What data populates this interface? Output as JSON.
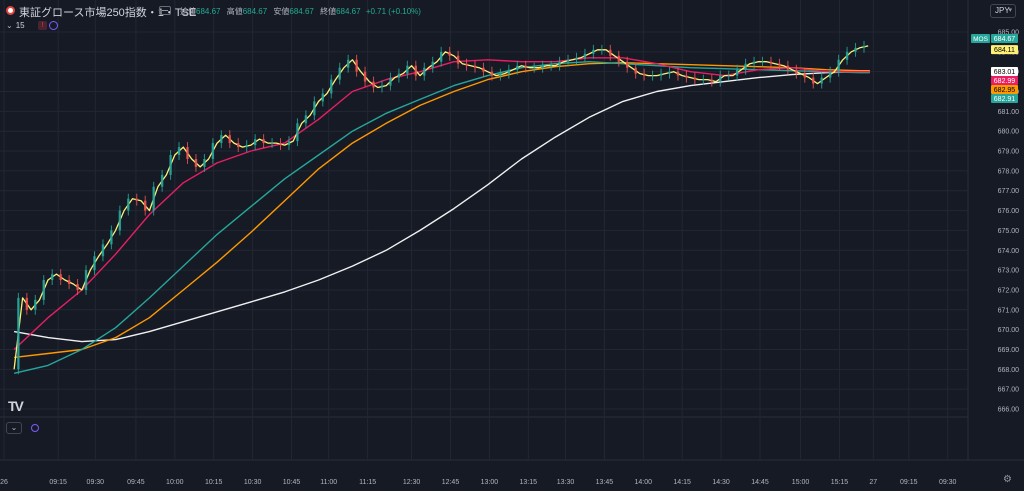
{
  "header": {
    "title": "東証グロース市場250指数・1・TSE",
    "ohlc": [
      {
        "label": "始値",
        "value": "684.67"
      },
      {
        "label": "高値",
        "value": "684.67"
      },
      {
        "label": "安値",
        "value": "684.67"
      },
      {
        "label": "終値",
        "value": "684.67"
      }
    ],
    "change": "+0.71 (+0.10%)",
    "interval_label": "15",
    "currency": "JPY"
  },
  "chart_data": {
    "type": "line",
    "ylim": [
      665.8,
      685.2
    ],
    "y_ticks": [
      "685.00",
      "684.00",
      "683.00",
      "682.00",
      "681.00",
      "680.00",
      "679.00",
      "678.00",
      "677.00",
      "676.00",
      "675.00",
      "674.00",
      "673.00",
      "672.00",
      "671.00",
      "670.00",
      "669.00",
      "668.00",
      "667.00",
      "666.00"
    ],
    "x_ticks": [
      {
        "label": "26",
        "t": -0.6
      },
      {
        "label": "09:15",
        "t": 2.6
      },
      {
        "label": "09:30",
        "t": 4.8
      },
      {
        "label": "09:45",
        "t": 7.2
      },
      {
        "label": "10:00",
        "t": 9.5
      },
      {
        "label": "10:15",
        "t": 11.8
      },
      {
        "label": "10:30",
        "t": 14.1
      },
      {
        "label": "10:45",
        "t": 16.4
      },
      {
        "label": "11:00",
        "t": 18.6
      },
      {
        "label": "11:15",
        "t": 20.9
      },
      {
        "label": "12:30",
        "t": 23.5
      },
      {
        "label": "12:45",
        "t": 25.8
      },
      {
        "label": "13:00",
        "t": 28.1
      },
      {
        "label": "13:15",
        "t": 30.4
      },
      {
        "label": "13:30",
        "t": 32.6
      },
      {
        "label": "13:45",
        "t": 34.9
      },
      {
        "label": "14:00",
        "t": 37.2
      },
      {
        "label": "14:15",
        "t": 39.5
      },
      {
        "label": "14:30",
        "t": 41.8
      },
      {
        "label": "14:45",
        "t": 44.1
      },
      {
        "label": "15:00",
        "t": 46.5
      },
      {
        "label": "15:15",
        "t": 48.8
      },
      {
        "label": "27",
        "t": 50.8
      },
      {
        "label": "09:15",
        "t": 52.9
      },
      {
        "label": "09:30",
        "t": 55.2
      }
    ],
    "series": [
      {
        "key": "price",
        "color": "#fff176",
        "points": [
          [
            0,
            668.0
          ],
          [
            0.5,
            671.6
          ],
          [
            1,
            671.0
          ],
          [
            1.5,
            671.5
          ],
          [
            2,
            672.5
          ],
          [
            2.5,
            672.8
          ],
          [
            3,
            672.5
          ],
          [
            3.5,
            672.3
          ],
          [
            4,
            672.0
          ],
          [
            4.5,
            673.0
          ],
          [
            5,
            673.7
          ],
          [
            5.5,
            674.3
          ],
          [
            6,
            675.0
          ],
          [
            6.5,
            676.0
          ],
          [
            7,
            676.6
          ],
          [
            7.5,
            676.5
          ],
          [
            8,
            676.0
          ],
          [
            8.5,
            677.2
          ],
          [
            9,
            677.8
          ],
          [
            9.5,
            678.8
          ],
          [
            10,
            679.2
          ],
          [
            10.5,
            678.6
          ],
          [
            11,
            678.2
          ],
          [
            11.5,
            678.6
          ],
          [
            12,
            679.4
          ],
          [
            12.5,
            679.8
          ],
          [
            13,
            679.4
          ],
          [
            13.5,
            679.2
          ],
          [
            14,
            679.3
          ],
          [
            14.5,
            679.6
          ],
          [
            15,
            679.4
          ],
          [
            15.5,
            679.4
          ],
          [
            16,
            679.3
          ],
          [
            16.5,
            679.5
          ],
          [
            17,
            680.4
          ],
          [
            17.5,
            680.8
          ],
          [
            18,
            681.5
          ],
          [
            18.5,
            681.9
          ],
          [
            19,
            682.6
          ],
          [
            19.5,
            683.2
          ],
          [
            20,
            683.6
          ],
          [
            20.5,
            683.0
          ],
          [
            21,
            682.5
          ],
          [
            21.5,
            682.2
          ],
          [
            22,
            682.3
          ],
          [
            22.5,
            682.7
          ],
          [
            23,
            682.9
          ],
          [
            23.5,
            683.3
          ],
          [
            24,
            682.8
          ],
          [
            24.5,
            683.2
          ],
          [
            25,
            683.5
          ],
          [
            25.5,
            684.0
          ],
          [
            26,
            683.8
          ],
          [
            26.5,
            683.4
          ],
          [
            27,
            683.3
          ],
          [
            27.5,
            683.2
          ],
          [
            28,
            683.0
          ],
          [
            28.5,
            682.8
          ],
          [
            29,
            682.9
          ],
          [
            29.5,
            683.1
          ],
          [
            30,
            683.3
          ],
          [
            30.5,
            683.2
          ],
          [
            31,
            683.2
          ],
          [
            31.5,
            683.3
          ],
          [
            32,
            683.3
          ],
          [
            32.5,
            683.5
          ],
          [
            33,
            683.6
          ],
          [
            33.5,
            683.7
          ],
          [
            34,
            683.9
          ],
          [
            34.5,
            684.1
          ],
          [
            35,
            684.1
          ],
          [
            35.5,
            683.8
          ],
          [
            36,
            683.5
          ],
          [
            36.5,
            683.2
          ],
          [
            37,
            682.9
          ],
          [
            37.5,
            682.8
          ],
          [
            38,
            682.8
          ],
          [
            38.5,
            682.9
          ],
          [
            39,
            683.0
          ],
          [
            39.5,
            682.8
          ],
          [
            40,
            682.7
          ],
          [
            40.5,
            682.6
          ],
          [
            41,
            682.6
          ],
          [
            41.5,
            682.5
          ],
          [
            42,
            682.8
          ],
          [
            42.5,
            682.8
          ],
          [
            43,
            683.1
          ],
          [
            43.5,
            683.4
          ],
          [
            44,
            683.5
          ],
          [
            44.5,
            683.5
          ],
          [
            45,
            683.4
          ],
          [
            45.5,
            683.3
          ],
          [
            46,
            683.1
          ],
          [
            46.5,
            682.9
          ],
          [
            47,
            682.7
          ],
          [
            47.5,
            682.4
          ],
          [
            48,
            682.7
          ],
          [
            48.5,
            683.0
          ],
          [
            49,
            683.6
          ],
          [
            49.5,
            684.0
          ],
          [
            50,
            684.2
          ],
          [
            50.5,
            684.3
          ]
        ]
      },
      {
        "key": "ma_red",
        "color": "#e91e63",
        "points": [
          [
            0,
            669.0
          ],
          [
            2,
            670.6
          ],
          [
            4,
            672.0
          ],
          [
            6,
            673.8
          ],
          [
            8,
            675.8
          ],
          [
            10,
            677.4
          ],
          [
            12,
            678.4
          ],
          [
            14,
            679.0
          ],
          [
            16,
            679.4
          ],
          [
            18,
            680.6
          ],
          [
            20,
            682.0
          ],
          [
            22,
            682.6
          ],
          [
            24,
            683.0
          ],
          [
            26,
            683.5
          ],
          [
            28,
            683.6
          ],
          [
            30,
            683.5
          ],
          [
            32,
            683.5
          ],
          [
            34,
            683.7
          ],
          [
            36,
            683.7
          ],
          [
            38,
            683.4
          ],
          [
            40,
            683.0
          ],
          [
            42,
            682.8
          ],
          [
            44,
            683.1
          ],
          [
            46,
            683.2
          ],
          [
            48,
            683.0
          ],
          [
            50,
            683.0
          ],
          [
            50.6,
            683.0
          ]
        ]
      },
      {
        "key": "ma_teal",
        "color": "#26a69a",
        "points": [
          [
            0,
            667.8
          ],
          [
            2,
            668.2
          ],
          [
            4,
            669.0
          ],
          [
            6,
            670.1
          ],
          [
            8,
            671.6
          ],
          [
            10,
            673.2
          ],
          [
            12,
            674.8
          ],
          [
            14,
            676.2
          ],
          [
            16,
            677.6
          ],
          [
            18,
            678.8
          ],
          [
            20,
            680.0
          ],
          [
            22,
            680.9
          ],
          [
            24,
            681.6
          ],
          [
            26,
            682.3
          ],
          [
            28,
            682.8
          ],
          [
            30,
            683.2
          ],
          [
            32,
            683.4
          ],
          [
            34,
            683.5
          ],
          [
            36,
            683.4
          ],
          [
            38,
            683.3
          ],
          [
            40,
            683.2
          ],
          [
            42,
            683.15
          ],
          [
            44,
            683.1
          ],
          [
            46,
            683.05
          ],
          [
            48,
            683.0
          ],
          [
            50,
            682.95
          ],
          [
            50.6,
            682.95
          ]
        ]
      },
      {
        "key": "ma_orange",
        "color": "#ff9800",
        "points": [
          [
            0,
            668.6
          ],
          [
            2,
            668.8
          ],
          [
            4,
            669.0
          ],
          [
            6,
            669.6
          ],
          [
            8,
            670.6
          ],
          [
            10,
            672.0
          ],
          [
            12,
            673.4
          ],
          [
            14,
            674.9
          ],
          [
            16,
            676.5
          ],
          [
            18,
            678.1
          ],
          [
            20,
            679.4
          ],
          [
            22,
            680.4
          ],
          [
            24,
            681.3
          ],
          [
            26,
            682.0
          ],
          [
            28,
            682.6
          ],
          [
            30,
            683.0
          ],
          [
            32,
            683.25
          ],
          [
            34,
            683.4
          ],
          [
            36,
            683.45
          ],
          [
            38,
            683.4
          ],
          [
            40,
            683.35
          ],
          [
            42,
            683.3
          ],
          [
            44,
            683.25
          ],
          [
            46,
            683.2
          ],
          [
            48,
            683.1
          ],
          [
            50,
            683.05
          ],
          [
            50.6,
            683.05
          ]
        ]
      },
      {
        "key": "ma_white",
        "color": "#f0f0f0",
        "points": [
          [
            0,
            669.9
          ],
          [
            2,
            669.6
          ],
          [
            4,
            669.4
          ],
          [
            6,
            669.5
          ],
          [
            8,
            669.9
          ],
          [
            10,
            670.4
          ],
          [
            12,
            670.9
          ],
          [
            14,
            671.4
          ],
          [
            16,
            671.9
          ],
          [
            18,
            672.5
          ],
          [
            20,
            673.2
          ],
          [
            22,
            674.0
          ],
          [
            24,
            675.0
          ],
          [
            26,
            676.1
          ],
          [
            28,
            677.3
          ],
          [
            30,
            678.6
          ],
          [
            32,
            679.7
          ],
          [
            34,
            680.7
          ],
          [
            36,
            681.5
          ],
          [
            38,
            682.0
          ],
          [
            40,
            682.3
          ],
          [
            42,
            682.5
          ],
          [
            44,
            682.7
          ],
          [
            46,
            682.85
          ],
          [
            48,
            682.95
          ],
          [
            50,
            683.0
          ],
          [
            50.6,
            683.01
          ]
        ]
      }
    ],
    "price_labels": [
      {
        "value": 684.67,
        "text": "684.67",
        "tag": "MOS",
        "bg": "#26a69a",
        "fg": "#ffffff"
      },
      {
        "value": 684.11,
        "text": "684.11",
        "bg": "#fff176",
        "fg": "#000000"
      },
      {
        "value": 683.01,
        "text": "683.01",
        "bg": "#ffffff",
        "fg": "#000000"
      },
      {
        "value": 682.99,
        "text": "682.99",
        "bg": "#e91e63",
        "fg": "#ffffff"
      },
      {
        "value": 682.95,
        "text": "682.95",
        "bg": "#ff9800",
        "fg": "#000000"
      },
      {
        "value": 682.91,
        "text": "682.91",
        "bg": "#26a69a",
        "fg": "#ffffff"
      }
    ],
    "grid": true
  }
}
